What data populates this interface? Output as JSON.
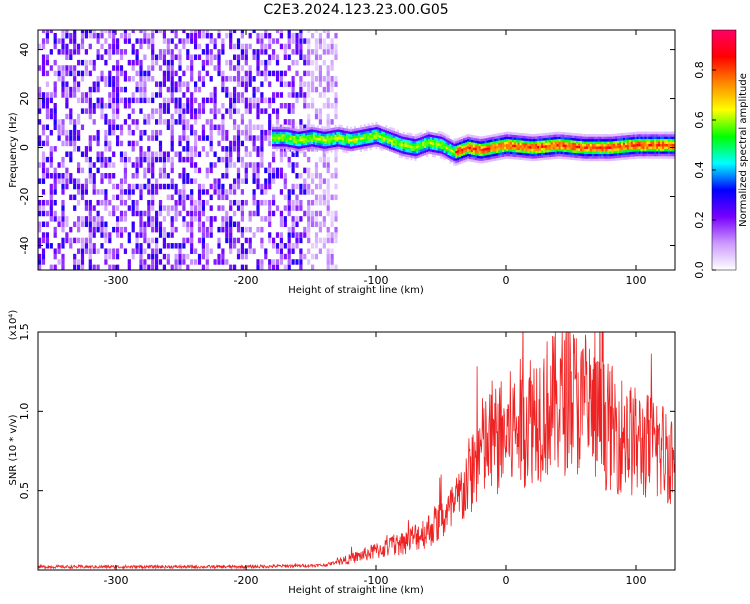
{
  "chart_data": [
    {
      "type": "heatmap",
      "title": "C2E3.2024.123.23.00.G05",
      "xlabel": "Height of straight line (km)",
      "ylabel": "Frequency (Hz)",
      "xlim": [
        -360,
        130
      ],
      "ylim": [
        -50,
        48
      ],
      "x_ticks": [
        -300,
        -200,
        -100,
        0,
        100
      ],
      "y_ticks": [
        -40,
        -20,
        0,
        20,
        40
      ],
      "colorbar": {
        "label": "Normalized spectral amplitude",
        "range": [
          0,
          0.96
        ],
        "ticks": [
          "0.0",
          "0.2",
          "0.4",
          "0.6",
          "0.8"
        ],
        "colormap": [
          "#ffffff",
          "#cc99ff",
          "#7700ff",
          "#0000ff",
          "#00ffff",
          "#00ff00",
          "#ffff00",
          "#ff8800",
          "#ff0000",
          "#ff0066"
        ]
      },
      "noise_region": {
        "x_range": [
          -360,
          -130
        ],
        "y_range": [
          -50,
          48
        ],
        "level": 0.25
      },
      "signal_ridge": {
        "x": [
          -180,
          -170,
          -160,
          -150,
          -140,
          -130,
          -120,
          -110,
          -100,
          -90,
          -80,
          -70,
          -60,
          -50,
          -40,
          -30,
          -20,
          -10,
          0,
          20,
          40,
          60,
          80,
          100,
          130
        ],
        "y": [
          4,
          4,
          3,
          4,
          3,
          4,
          3,
          4,
          5,
          3,
          1,
          0,
          2,
          1,
          -2,
          0,
          -1,
          0,
          1,
          0,
          1,
          0,
          0,
          1,
          1
        ],
        "peak_amplitude": 0.9
      }
    },
    {
      "type": "line",
      "title": "",
      "xlabel": "Height of straight line (km)",
      "ylabel": "SNR (10 * v/v)",
      "y_multiplier": "(x10⁴)",
      "xlim": [
        -360,
        130
      ],
      "ylim": [
        0,
        1.5
      ],
      "x_ticks": [
        -300,
        -200,
        -100,
        0,
        100
      ],
      "y_ticks": [
        "0.5",
        "1.0",
        "1.5"
      ],
      "line_color": "#ee2222",
      "series": [
        {
          "x": [
            -360,
            -300,
            -200,
            -140,
            -120,
            -100,
            -80,
            -60,
            -40,
            -30,
            -20,
            -10,
            0,
            20,
            40,
            50,
            60,
            80,
            100,
            130
          ],
          "y": [
            0.02,
            0.02,
            0.02,
            0.03,
            0.07,
            0.12,
            0.17,
            0.25,
            0.38,
            0.55,
            0.75,
            0.8,
            0.85,
            0.98,
            1.05,
            1.1,
            1.0,
            0.9,
            0.8,
            0.72
          ]
        }
      ]
    }
  ]
}
